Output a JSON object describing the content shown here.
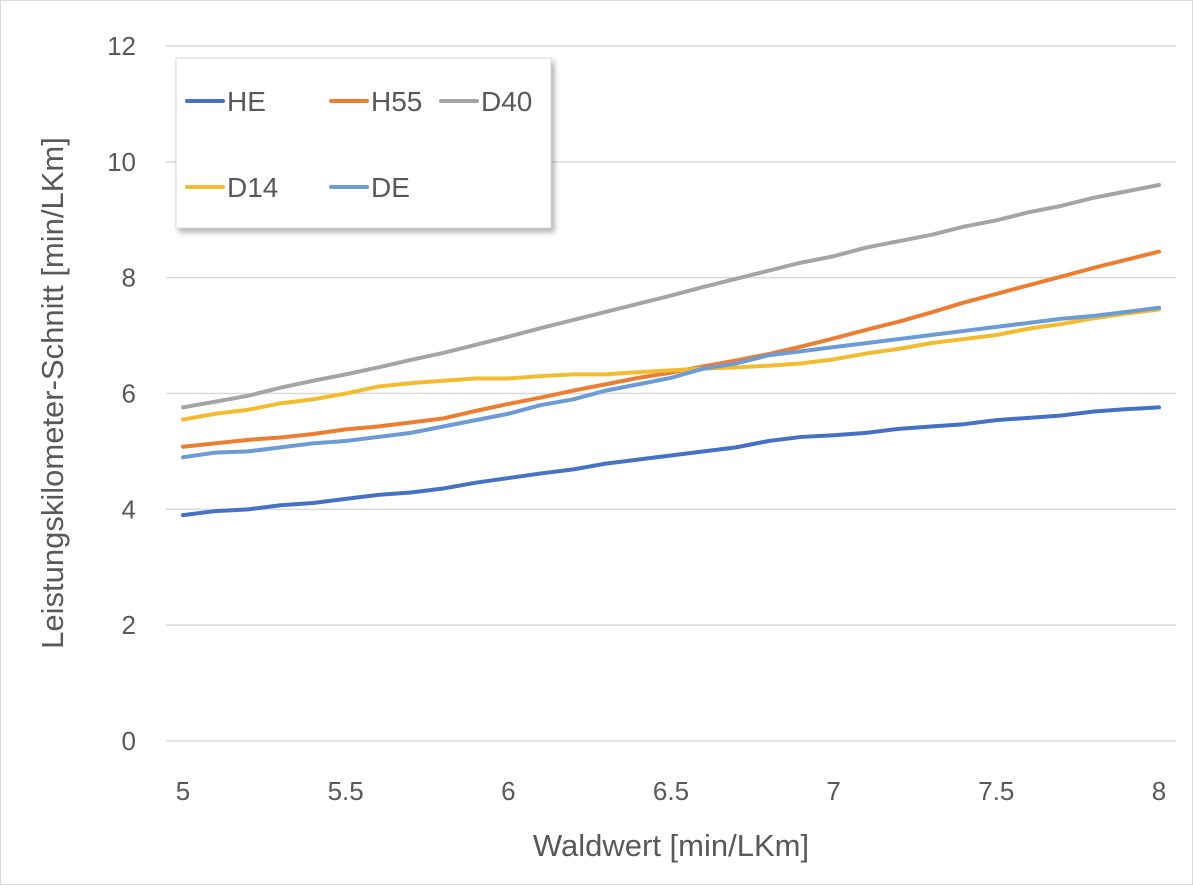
{
  "chart_data": {
    "type": "line",
    "title": "",
    "xlabel": "Waldwert [min/LKm]",
    "ylabel": "Leistungskilometer-Schnitt [min/LKm]",
    "xlim": [
      5,
      8
    ],
    "ylim": [
      0,
      12
    ],
    "xticks": [
      "5",
      "5.5",
      "6",
      "6.5",
      "7",
      "7.5",
      "8"
    ],
    "yticks": [
      "0",
      "2",
      "4",
      "6",
      "8",
      "10",
      "12"
    ],
    "grid": "horizontal",
    "legend_position": "top-left",
    "x": [
      5.0,
      5.1,
      5.2,
      5.3,
      5.4,
      5.5,
      5.6,
      5.7,
      5.8,
      5.9,
      6.0,
      6.1,
      6.2,
      6.3,
      6.4,
      6.5,
      6.6,
      6.7,
      6.8,
      6.9,
      7.0,
      7.1,
      7.2,
      7.3,
      7.4,
      7.5,
      7.6,
      7.7,
      7.8,
      7.9,
      8.0
    ],
    "series": [
      {
        "name": "HE",
        "color": "#4472C4",
        "values": [
          3.9,
          3.97,
          4.0,
          4.07,
          4.11,
          4.18,
          4.25,
          4.29,
          4.36,
          4.46,
          4.54,
          4.62,
          4.69,
          4.79,
          4.86,
          4.93,
          5.0,
          5.07,
          5.18,
          5.25,
          5.28,
          5.32,
          5.39,
          5.43,
          5.47,
          5.54,
          5.58,
          5.62,
          5.69,
          5.73,
          5.76
        ]
      },
      {
        "name": "H55",
        "color": "#ED7D31",
        "values": [
          5.08,
          5.14,
          5.2,
          5.24,
          5.3,
          5.38,
          5.43,
          5.5,
          5.57,
          5.7,
          5.82,
          5.93,
          6.05,
          6.16,
          6.27,
          6.36,
          6.47,
          6.57,
          6.68,
          6.81,
          6.95,
          7.1,
          7.24,
          7.4,
          7.57,
          7.72,
          7.87,
          8.02,
          8.17,
          8.31,
          8.45
        ]
      },
      {
        "name": "D40",
        "color": "#A5A5A5",
        "values": [
          5.76,
          5.86,
          5.96,
          6.1,
          6.22,
          6.33,
          6.45,
          6.58,
          6.7,
          6.84,
          6.98,
          7.13,
          7.27,
          7.41,
          7.55,
          7.69,
          7.84,
          7.98,
          8.12,
          8.26,
          8.37,
          8.52,
          8.63,
          8.74,
          8.88,
          8.99,
          9.13,
          9.24,
          9.38,
          9.49,
          9.6
        ]
      },
      {
        "name": "D14",
        "color": "#F2BC2E",
        "values": [
          5.55,
          5.65,
          5.72,
          5.83,
          5.9,
          6.0,
          6.12,
          6.18,
          6.22,
          6.26,
          6.26,
          6.3,
          6.33,
          6.33,
          6.37,
          6.4,
          6.43,
          6.45,
          6.48,
          6.52,
          6.59,
          6.69,
          6.77,
          6.87,
          6.94,
          7.01,
          7.12,
          7.2,
          7.3,
          7.38,
          7.45
        ]
      },
      {
        "name": "DE",
        "color": "#6C9BD6",
        "values": [
          4.9,
          4.98,
          5.0,
          5.07,
          5.14,
          5.18,
          5.25,
          5.32,
          5.43,
          5.54,
          5.65,
          5.8,
          5.9,
          6.05,
          6.16,
          6.27,
          6.43,
          6.52,
          6.66,
          6.73,
          6.8,
          6.87,
          6.94,
          7.01,
          7.08,
          7.15,
          7.22,
          7.29,
          7.34,
          7.41,
          7.48
        ]
      }
    ]
  }
}
